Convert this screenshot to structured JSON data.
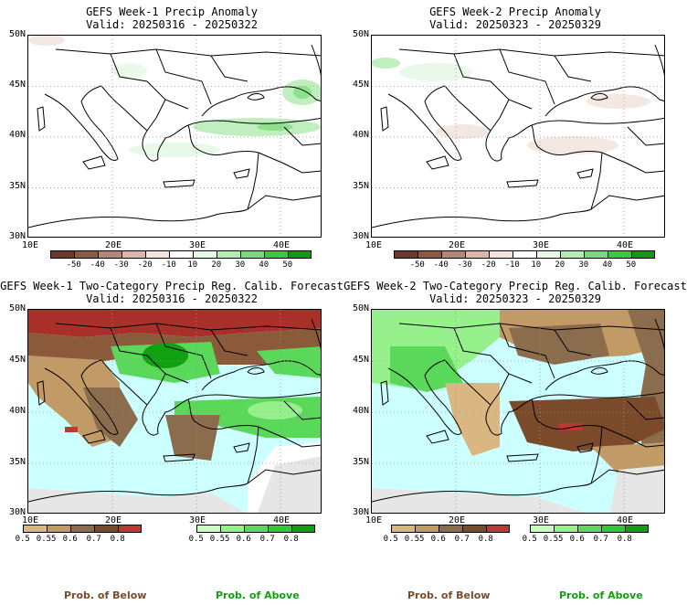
{
  "panels": [
    {
      "title": "GEFS Week-1 Precip Anomaly",
      "valid": "Valid: 20250316 - 20250322"
    },
    {
      "title": "GEFS Week-2 Precip Anomaly",
      "valid": "Valid: 20250323 - 20250329"
    },
    {
      "title": "GEFS Week-1 Two-Category Precip Reg. Calib. Forecast",
      "valid": "Valid: 20250316 - 20250322"
    },
    {
      "title": "GEFS Week-2 Two-Category Precip Reg. Calib. Forecast",
      "valid": "Valid: 20250323 - 20250329"
    }
  ],
  "lat_labels": [
    "50N",
    "45N",
    "40N",
    "35N",
    "30N"
  ],
  "lon_labels": [
    "10E",
    "20E",
    "30E",
    "40E"
  ],
  "anomaly_scale": {
    "labels": [
      "-50",
      "-40",
      "-30",
      "-20",
      "-10",
      "10",
      "20",
      "30",
      "40",
      "50"
    ],
    "colors": [
      "#6b3a2a",
      "#8b5a45",
      "#b08878",
      "#d8b8a8",
      "#f2e4dc",
      "#ffffff",
      "#e6f8e6",
      "#b4ecb4",
      "#78dc78",
      "#3cc83c",
      "#119911"
    ]
  },
  "prob_below_scale": {
    "labels": [
      "0.5",
      "0.55",
      "0.6",
      "0.7",
      "0.8"
    ],
    "colors": [
      "#d9b682",
      "#c19a66",
      "#8b6c4c",
      "#7a4a2a",
      "#b83a30"
    ]
  },
  "prob_above_scale": {
    "labels": [
      "0.5",
      "0.55",
      "0.6",
      "0.7",
      "0.8"
    ],
    "colors": [
      "#c8ffc0",
      "#96f08c",
      "#5ad85a",
      "#32c832",
      "#10a010"
    ]
  },
  "footer": {
    "below": "Prob. of Below",
    "above": "Prob. of Above"
  },
  "colors": {
    "sea": "#ccffff",
    "below_text": "#7a4a2a",
    "above_text": "#10a010"
  }
}
